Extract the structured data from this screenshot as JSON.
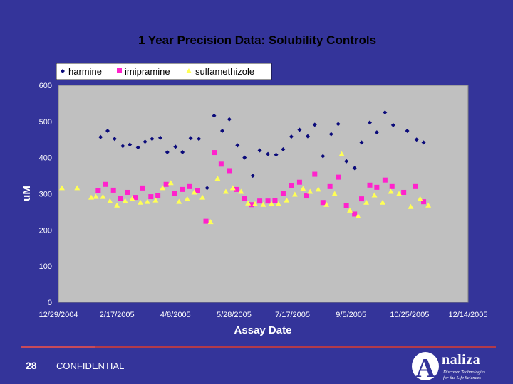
{
  "chart_data": {
    "type": "scatter",
    "title": "1 Year Precision Data: Solubility Controls",
    "xlabel": "Assay Date",
    "ylabel": "uM",
    "ylim": [
      0,
      600
    ],
    "yticks": [
      0,
      100,
      200,
      300,
      400,
      500,
      600
    ],
    "xlim": [
      0,
      350
    ],
    "xticks": [
      {
        "pos": 0,
        "label": "12/29/2004"
      },
      {
        "pos": 50,
        "label": "2/17/2005"
      },
      {
        "pos": 100,
        "label": "4/8/2005"
      },
      {
        "pos": 150,
        "label": "5/28/2005"
      },
      {
        "pos": 200,
        "label": "7/17/2005"
      },
      {
        "pos": 250,
        "label": "9/5/2005"
      },
      {
        "pos": 300,
        "label": "10/25/2005"
      },
      {
        "pos": 350,
        "label": "12/14/2005"
      }
    ],
    "legend_position": "top-left",
    "series": [
      {
        "name": "harmine",
        "marker": "diamond",
        "color": "#0a0a7a",
        "points": [
          [
            36,
            457
          ],
          [
            42,
            474
          ],
          [
            48,
            452
          ],
          [
            55,
            432
          ],
          [
            61,
            436
          ],
          [
            68,
            428
          ],
          [
            74,
            444
          ],
          [
            80,
            452
          ],
          [
            87,
            455
          ],
          [
            93,
            415
          ],
          [
            100,
            430
          ],
          [
            106,
            415
          ],
          [
            113,
            454
          ],
          [
            120,
            452
          ],
          [
            127,
            316
          ],
          [
            133,
            516
          ],
          [
            140,
            474
          ],
          [
            146,
            506
          ],
          [
            153,
            434
          ],
          [
            159,
            400
          ],
          [
            166,
            350
          ],
          [
            172,
            420
          ],
          [
            179,
            410
          ],
          [
            186,
            408
          ],
          [
            192,
            423
          ],
          [
            199,
            458
          ],
          [
            206,
            477
          ],
          [
            213,
            459
          ],
          [
            219,
            491
          ],
          [
            226,
            404
          ],
          [
            233,
            465
          ],
          [
            239,
            493
          ],
          [
            246,
            390
          ],
          [
            253,
            371
          ],
          [
            259,
            442
          ],
          [
            266,
            497
          ],
          [
            272,
            470
          ],
          [
            279,
            525
          ],
          [
            286,
            490
          ],
          [
            298,
            474
          ],
          [
            306,
            450
          ],
          [
            312,
            442
          ]
        ]
      },
      {
        "name": "imipramine",
        "marker": "square",
        "color": "#ff22cc",
        "points": [
          [
            34,
            308
          ],
          [
            40,
            326
          ],
          [
            47,
            310
          ],
          [
            53,
            288
          ],
          [
            59,
            304
          ],
          [
            66,
            290
          ],
          [
            72,
            316
          ],
          [
            79,
            292
          ],
          [
            85,
            296
          ],
          [
            92,
            326
          ],
          [
            99,
            300
          ],
          [
            106,
            312
          ],
          [
            112,
            320
          ],
          [
            119,
            308
          ],
          [
            126,
            224
          ],
          [
            133,
            414
          ],
          [
            139,
            382
          ],
          [
            146,
            364
          ],
          [
            152,
            312
          ],
          [
            159,
            288
          ],
          [
            165,
            270
          ],
          [
            172,
            280
          ],
          [
            179,
            280
          ],
          [
            185,
            282
          ],
          [
            192,
            300
          ],
          [
            199,
            322
          ],
          [
            206,
            332
          ],
          [
            212,
            294
          ],
          [
            219,
            354
          ],
          [
            226,
            276
          ],
          [
            232,
            320
          ],
          [
            239,
            346
          ],
          [
            246,
            268
          ],
          [
            253,
            244
          ],
          [
            259,
            286
          ],
          [
            266,
            324
          ],
          [
            272,
            318
          ],
          [
            279,
            338
          ],
          [
            285,
            320
          ],
          [
            295,
            304
          ],
          [
            305,
            320
          ],
          [
            312,
            278
          ]
        ]
      },
      {
        "name": "sulfamethizole",
        "marker": "triangle",
        "color": "#ffff55",
        "points": [
          [
            3,
            316
          ],
          [
            16,
            316
          ],
          [
            28,
            290
          ],
          [
            32,
            292
          ],
          [
            38,
            292
          ],
          [
            44,
            280
          ],
          [
            50,
            268
          ],
          [
            57,
            280
          ],
          [
            63,
            286
          ],
          [
            70,
            276
          ],
          [
            76,
            278
          ],
          [
            83,
            282
          ],
          [
            89,
            316
          ],
          [
            96,
            330
          ],
          [
            103,
            278
          ],
          [
            110,
            286
          ],
          [
            116,
            304
          ],
          [
            123,
            290
          ],
          [
            130,
            222
          ],
          [
            136,
            342
          ],
          [
            143,
            306
          ],
          [
            149,
            316
          ],
          [
            156,
            306
          ],
          [
            162,
            274
          ],
          [
            168,
            272
          ],
          [
            175,
            270
          ],
          [
            182,
            272
          ],
          [
            188,
            272
          ],
          [
            195,
            282
          ],
          [
            202,
            298
          ],
          [
            209,
            314
          ],
          [
            215,
            306
          ],
          [
            222,
            312
          ],
          [
            229,
            270
          ],
          [
            236,
            300
          ],
          [
            242,
            410
          ],
          [
            249,
            254
          ],
          [
            256,
            238
          ],
          [
            263,
            276
          ],
          [
            270,
            296
          ],
          [
            277,
            276
          ],
          [
            284,
            306
          ],
          [
            291,
            300
          ],
          [
            301,
            264
          ],
          [
            309,
            286
          ],
          [
            316,
            268
          ]
        ]
      }
    ]
  },
  "footer": {
    "page_number": "28",
    "confidential": "CONFIDENTIAL"
  },
  "logo": {
    "word": "naliza",
    "letter": "A",
    "tagline1": "Discover Technologies",
    "tagline2": "for the Life Sciences"
  },
  "colors": {
    "background": "#34349a",
    "plot_area": "#c0c0c0",
    "footer_rule": "#b23a4a"
  }
}
